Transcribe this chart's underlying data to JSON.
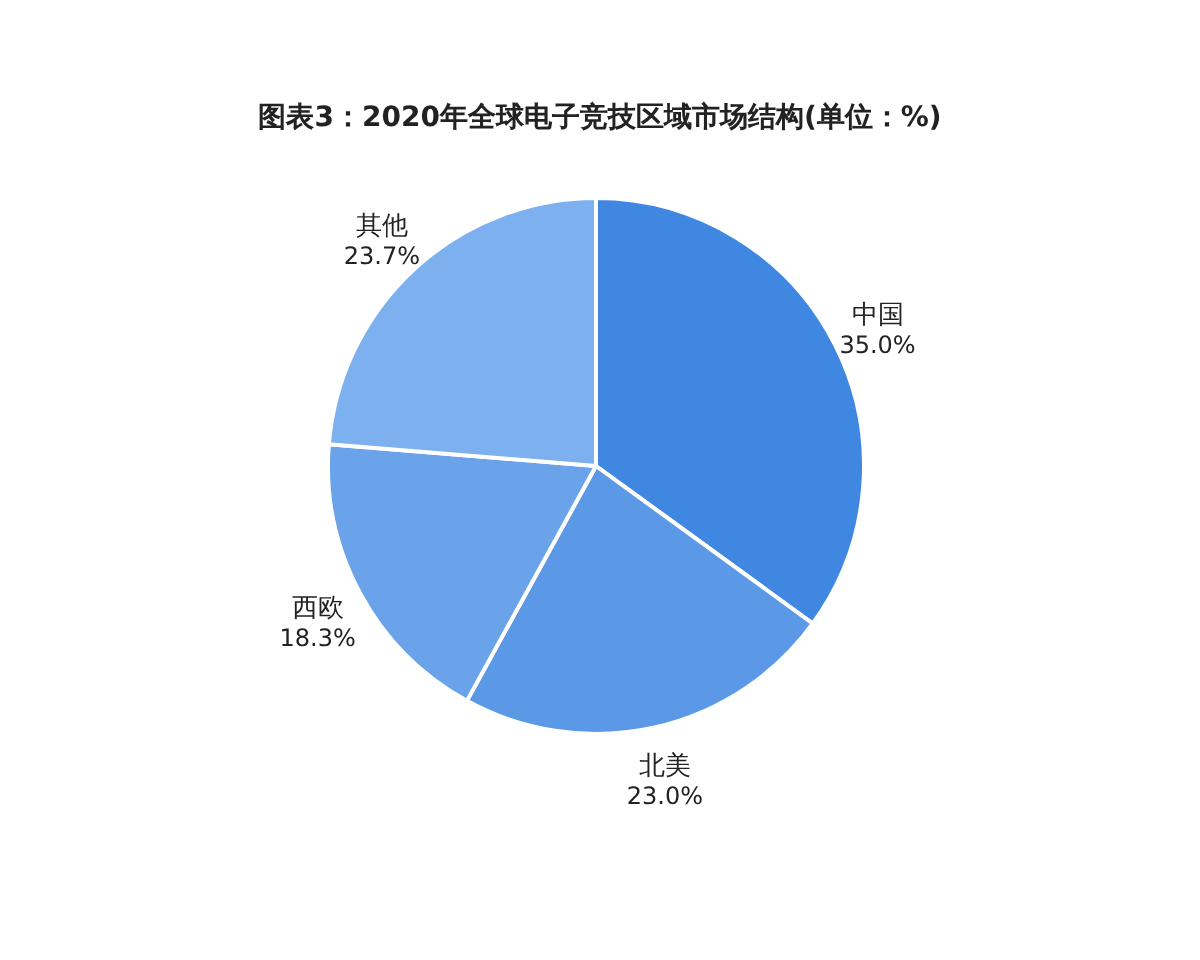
{
  "chart_data": {
    "type": "pie",
    "title": "图表3：2020年全球电子竞技区域市场结构(单位：%)",
    "categories": [
      "中国",
      "北美",
      "西欧",
      "其他"
    ],
    "values": [
      35.0,
      23.0,
      18.3,
      23.7
    ],
    "colors": [
      "#3f87e0",
      "#5b99e6",
      "#6aa3ea",
      "#7db0ee"
    ],
    "value_labels": [
      "35.0%",
      "23.0%",
      "18.3%",
      "23.7%"
    ]
  }
}
